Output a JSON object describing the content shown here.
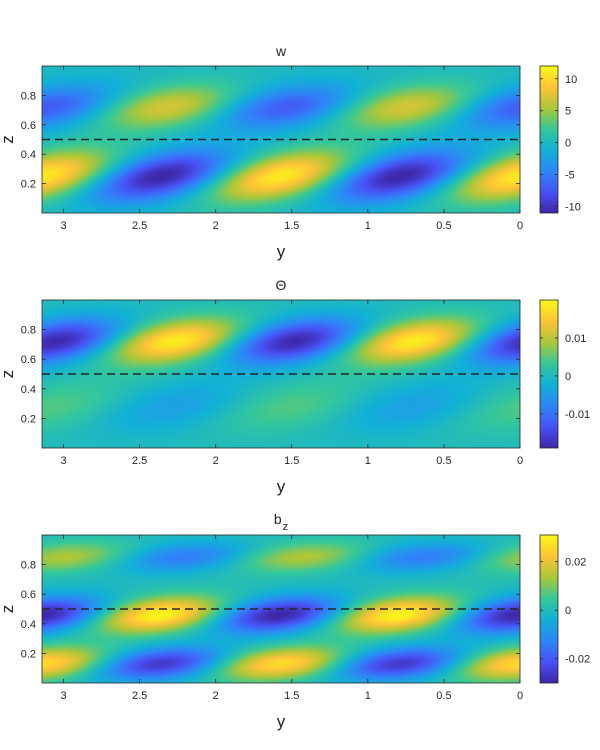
{
  "chart_data": [
    {
      "type": "heatmap",
      "title": "w",
      "xlabel": "y",
      "ylabel": "z",
      "xlim": [
        3.1416,
        0
      ],
      "ylim": [
        0,
        1
      ],
      "x_ticks": [
        3,
        2.5,
        2,
        1.5,
        1,
        0.5,
        0
      ],
      "x_tick_labels": [
        "3",
        "2.5",
        "2",
        "1.5",
        "1",
        "0.5",
        "0"
      ],
      "y_ticks": [
        0.2,
        0.4,
        0.6,
        0.8
      ],
      "y_tick_labels": [
        "0.2",
        "0.4",
        "0.6",
        "0.8"
      ],
      "colorbar": {
        "range": [
          -11,
          12
        ],
        "ticks": [
          10,
          5,
          0,
          -5,
          -10
        ],
        "tick_labels": [
          "10",
          "5",
          "0",
          "-5",
          "-10"
        ]
      },
      "dashed_line_z": 0.5,
      "field": {
        "wavenumber": 4,
        "lower": {
          "z_center": 0.25,
          "z_width": 0.17,
          "amplitude": 11,
          "phase": 0.0,
          "tilt": 5.0
        },
        "upper": {
          "z_center": 0.72,
          "z_width": 0.15,
          "amplitude": 7,
          "phase": 3.3,
          "tilt": 4.5
        }
      },
      "grid": false,
      "colormap": "parula"
    },
    {
      "type": "heatmap",
      "title": "Θ",
      "xlabel": "y",
      "ylabel": "z",
      "xlim": [
        3.1416,
        0
      ],
      "ylim": [
        0,
        1
      ],
      "x_ticks": [
        3,
        2.5,
        2,
        1.5,
        1,
        0.5,
        0
      ],
      "x_tick_labels": [
        "3",
        "2.5",
        "2",
        "1.5",
        "1",
        "0.5",
        "0"
      ],
      "y_ticks": [
        0.2,
        0.4,
        0.6,
        0.8
      ],
      "y_tick_labels": [
        "0.2",
        "0.4",
        "0.6",
        "0.8"
      ],
      "colorbar": {
        "range": [
          -0.019,
          0.02
        ],
        "ticks": [
          0.01,
          0,
          -0.01
        ],
        "tick_labels": [
          "0.01",
          "0",
          "-0.01"
        ]
      },
      "dashed_line_z": 0.5,
      "field": {
        "wavenumber": 4,
        "lower": {
          "z_center": 0.28,
          "z_width": 0.17,
          "amplitude": 0.0045,
          "phase": 0.3,
          "tilt": 4.5
        },
        "upper": {
          "z_center": 0.72,
          "z_width": 0.15,
          "amplitude": 0.0185,
          "phase": 3.5,
          "tilt": 4.5
        }
      },
      "grid": false,
      "colormap": "parula"
    },
    {
      "type": "heatmap",
      "title": "b",
      "title_subscript": "z",
      "xlabel": "y",
      "ylabel": "z",
      "xlim": [
        3.1416,
        0
      ],
      "ylim": [
        0,
        1
      ],
      "x_ticks": [
        3,
        2.5,
        2,
        1.5,
        1,
        0.5,
        0
      ],
      "x_tick_labels": [
        "3",
        "2.5",
        "2",
        "1.5",
        "1",
        "0.5",
        "0"
      ],
      "y_ticks": [
        0.2,
        0.4,
        0.6,
        0.8
      ],
      "y_tick_labels": [
        "0.2",
        "0.4",
        "0.6",
        "0.8"
      ],
      "colorbar": {
        "range": [
          -0.03,
          0.031
        ],
        "ticks": [
          0.02,
          0,
          -0.02
        ],
        "tick_labels": [
          "0.02",
          "0",
          "-0.02"
        ]
      },
      "dashed_line_z": 0.5,
      "field": {
        "wavenumber": 4,
        "lower": {
          "z_center": 0.13,
          "z_width": 0.11,
          "amplitude": 0.026,
          "phase": 0.0,
          "tilt": 4.5
        },
        "middle": {
          "z_center": 0.46,
          "z_width": 0.12,
          "amplitude": 0.03,
          "phase": 3.1,
          "tilt": 4.5
        },
        "upper": {
          "z_center": 0.85,
          "z_width": 0.1,
          "amplitude": 0.014,
          "phase": 0.6,
          "tilt": 4.5
        }
      },
      "grid": false,
      "colormap": "parula"
    }
  ]
}
